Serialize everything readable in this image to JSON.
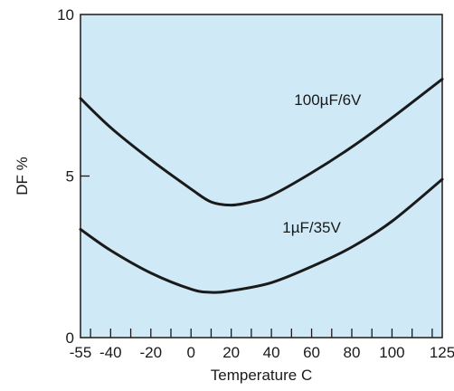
{
  "colors": {
    "plot_background": "#cfe9f6",
    "frame": "#1a1a1a",
    "curve": "#1a1a1a"
  },
  "chart_data": {
    "type": "line",
    "title": "",
    "xlabel": "Temperature C",
    "ylabel": "DF %",
    "xlim": [
      -55,
      125
    ],
    "ylim": [
      0,
      10
    ],
    "grid": false,
    "x_ticks": [
      -55,
      -40,
      -20,
      0,
      20,
      40,
      60,
      80,
      100,
      125
    ],
    "x_tick_labels": [
      "-55",
      "-40",
      "-20",
      "0",
      "20",
      "40",
      "60",
      "80",
      "100",
      "125"
    ],
    "y_ticks": [
      0,
      5,
      10
    ],
    "y_tick_labels": [
      "0",
      "5",
      "10"
    ],
    "series": [
      {
        "name": "100µF/6V",
        "x": [
          -55,
          -40,
          -20,
          0,
          10,
          20,
          30,
          40,
          60,
          80,
          100,
          125
        ],
        "y": [
          7.4,
          6.5,
          5.5,
          4.6,
          4.2,
          4.1,
          4.2,
          4.4,
          5.1,
          5.9,
          6.8,
          8.0
        ]
      },
      {
        "name": "1µF/35V",
        "x": [
          -55,
          -40,
          -20,
          0,
          10,
          20,
          40,
          60,
          80,
          100,
          125
        ],
        "y": [
          3.35,
          2.7,
          2.0,
          1.5,
          1.4,
          1.45,
          1.7,
          2.2,
          2.8,
          3.6,
          4.9
        ]
      }
    ]
  }
}
